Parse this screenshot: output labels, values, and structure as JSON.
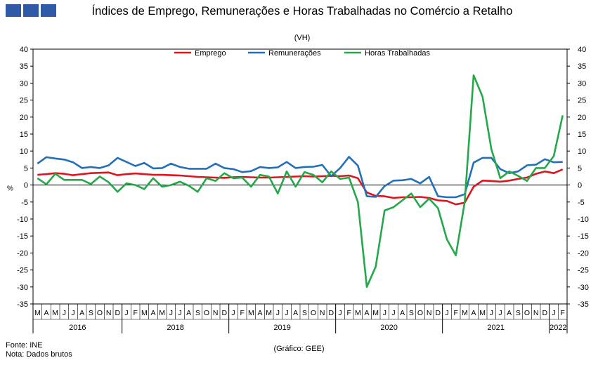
{
  "header": {
    "title": "Índices de Emprego, Remunerações e Horas Trabalhadas no Comércio a Retalho",
    "subtitle": "(VH)"
  },
  "footer": {
    "source": "Fonte: INE",
    "note": "Nota: Dados brutos",
    "credit": "(Gráfico: GEE)"
  },
  "colors": {
    "emprego": "#e0141e",
    "remuneracoes": "#2370b8",
    "horas": "#23a84a",
    "logo": "#2e5aa8"
  },
  "chart_data": {
    "type": "line",
    "ylabel": "%",
    "ylim": [
      -35,
      40
    ],
    "yticks": [
      -35,
      -30,
      -25,
      -20,
      -15,
      -10,
      -5,
      0,
      5,
      10,
      15,
      20,
      25,
      30,
      35,
      40
    ],
    "months": [
      "M",
      "A",
      "M",
      "J",
      "J",
      "A",
      "S",
      "O",
      "N",
      "D",
      "J",
      "F",
      "M",
      "A",
      "M",
      "J",
      "J",
      "A",
      "S",
      "O",
      "N",
      "D",
      "J",
      "F",
      "M",
      "A",
      "M",
      "J",
      "J",
      "A",
      "S",
      "O",
      "N",
      "D",
      "J",
      "F",
      "M",
      "A",
      "M",
      "J",
      "J",
      "A",
      "S",
      "O",
      "N",
      "D",
      "J",
      "F",
      "M",
      "A",
      "M",
      "J",
      "J",
      "A",
      "S",
      "O",
      "N",
      "D",
      "J",
      "F"
    ],
    "years": [
      {
        "label": "2016",
        "start": 0,
        "end": 9
      },
      {
        "label": "2018",
        "start": 10,
        "end": 21
      },
      {
        "label": "2019",
        "start": 22,
        "end": 33
      },
      {
        "label": "2020",
        "start": 34,
        "end": 45
      },
      {
        "label": "2021",
        "start": 46,
        "end": 57
      },
      {
        "label": "2022",
        "start": 58,
        "end": 59
      }
    ],
    "series": [
      {
        "name": "Emprego",
        "color": "#e0141e",
        "values": [
          3.0,
          3.2,
          3.5,
          3.3,
          2.9,
          3.2,
          3.5,
          3.6,
          3.7,
          2.9,
          3.2,
          3.4,
          3.2,
          3.0,
          3.0,
          2.9,
          2.8,
          2.6,
          2.4,
          2.3,
          2.2,
          2.1,
          2.3,
          2.4,
          2.3,
          2.2,
          2.2,
          2.3,
          2.4,
          2.5,
          2.6,
          2.5,
          2.6,
          2.7,
          2.6,
          2.8,
          2.0,
          -2.2,
          -3.2,
          -3.3,
          -3.8,
          -3.6,
          -3.6,
          -3.5,
          -3.8,
          -4.5,
          -4.7,
          -5.7,
          -5.2,
          -0.5,
          1.3,
          1.2,
          1.0,
          1.3,
          1.8,
          2.2,
          3.3,
          4.0,
          3.5,
          4.6
        ]
      },
      {
        "name": "Remunerações",
        "color": "#2370b8",
        "values": [
          6.3,
          8.2,
          7.8,
          7.5,
          6.7,
          5.0,
          5.3,
          5.0,
          5.8,
          8.0,
          6.8,
          5.6,
          6.5,
          4.9,
          5.0,
          6.3,
          5.3,
          4.8,
          4.8,
          4.8,
          6.3,
          5.0,
          4.7,
          3.8,
          4.1,
          5.3,
          5.0,
          5.2,
          6.8,
          5.0,
          5.3,
          5.4,
          5.9,
          2.6,
          5.0,
          8.3,
          5.7,
          -3.3,
          -3.5,
          -0.3,
          1.3,
          1.4,
          1.8,
          0.5,
          2.4,
          -3.3,
          -3.6,
          -3.6,
          -2.7,
          6.6,
          8.0,
          8.0,
          4.7,
          3.5,
          4.0,
          5.8,
          6.0,
          7.6,
          6.7,
          6.8
        ]
      },
      {
        "name": "Horas Trabalhadas",
        "color": "#23a84a",
        "values": [
          2.0,
          0.2,
          3.3,
          1.5,
          1.5,
          1.5,
          0.3,
          2.5,
          0.8,
          -2.0,
          0.5,
          0.0,
          -1.2,
          2.0,
          -0.5,
          0.0,
          1.0,
          -0.2,
          -2.0,
          2.0,
          1.2,
          3.5,
          2.0,
          2.2,
          -0.5,
          3.0,
          2.5,
          -2.5,
          4.0,
          -0.5,
          3.8,
          3.0,
          0.8,
          4.0,
          1.8,
          2.2,
          -5.0,
          -30.0,
          -24.0,
          -7.5,
          -6.5,
          -4.5,
          -2.5,
          -6.5,
          -4.0,
          -6.8,
          -16.0,
          -20.7,
          -5.0,
          32.3,
          26.0,
          10.5,
          2.0,
          4.0,
          2.7,
          1.2,
          5.0,
          5.0,
          8.5,
          20.5
        ]
      }
    ]
  }
}
